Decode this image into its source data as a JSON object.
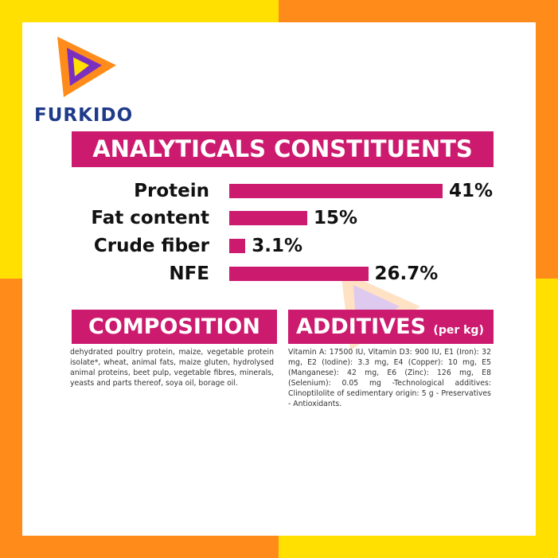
{
  "brand": "FURKIDO",
  "chart_data": {
    "type": "bar",
    "title": "ANALYTICALS CONSTITUENTS",
    "categories": [
      "Protein",
      "Fat content",
      "Crude fiber",
      "NFE"
    ],
    "values": [
      41,
      15,
      3.1,
      26.7
    ],
    "value_labels": [
      "41%",
      "15%",
      "3.1%",
      "26.7%"
    ],
    "color": "#cc1a6f",
    "orientation": "horizontal"
  },
  "composition": {
    "title": "COMPOSITION",
    "text": "dehydrated poultry protein, maize, vegetable protein isolate*, wheat, animal fats, maize gluten, hydrolysed animal proteins, beet pulp, vegetable fibres, minerals, yeasts and parts thereof, soya oil, borage oil."
  },
  "additives": {
    "title": "ADDITIVES",
    "unit": "(per kg)",
    "text": "Vitamin A: 17500 IU, Vitamin D3: 900 IU, E1 (Iron): 32 mg, E2 (Iodine): 3.3 mg, E4 (Copper): 10 mg, E5 (Manganese): 42 mg, E6 (Zinc): 126 mg, E8 (Selenium): 0.05 mg -Technological additives: Clinoptilolite of sedimentary origin: 5 g - Preservatives - Antioxidants."
  }
}
